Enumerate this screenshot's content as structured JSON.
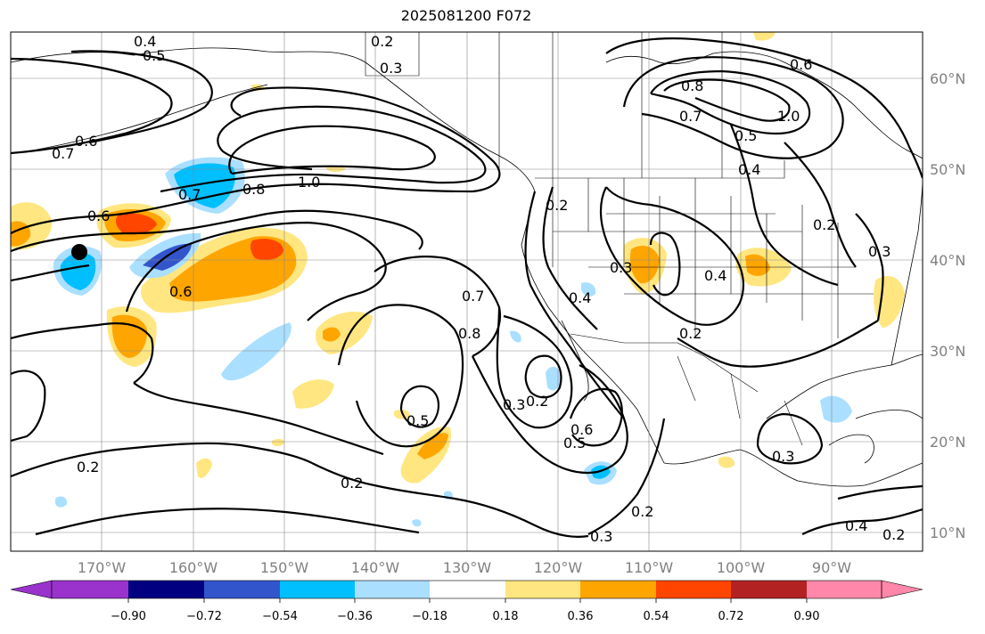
{
  "title": "2025081200 F072",
  "map": {
    "latitude_ticks": [
      "60°N",
      "50°N",
      "40°N",
      "30°N",
      "20°N",
      "10°N"
    ],
    "longitude_ticks": [
      "170°W",
      "160°W",
      "150°W",
      "140°W",
      "130°W",
      "120°W",
      "110°W",
      "100°W",
      "90°W"
    ],
    "contour_labels": [
      "0.4",
      "0.5",
      "0.2",
      "0.3",
      "0.6",
      "0.7",
      "0.6",
      "0.7",
      "0.8",
      "1.0",
      "0.6",
      "0.6",
      "0.8",
      "0.7",
      "0.5",
      "0.4",
      "1.0",
      "0.2",
      "0.3",
      "0.2",
      "0.3",
      "0.4",
      "0.2",
      "0.7",
      "0.8",
      "0.3",
      "0.2",
      "0.6",
      "0.5",
      "0.5",
      "0.4",
      "0.2",
      "0.3",
      "0.2",
      "0.2",
      "0.3",
      "0.4",
      "0.2"
    ],
    "marker": "station-dot"
  },
  "colorbar": {
    "tick_labels": [
      "−0.90",
      "−0.72",
      "−0.54",
      "−0.36",
      "−0.18",
      "0.18",
      "0.36",
      "0.54",
      "0.72",
      "0.90"
    ],
    "colors": [
      "#9933cc",
      "#000080",
      "#3355cc",
      "#00bfff",
      "#aadfff",
      "#ffffff",
      "#ffe680",
      "#ffa500",
      "#ff4500",
      "#b22222",
      "#ff88aa"
    ]
  }
}
